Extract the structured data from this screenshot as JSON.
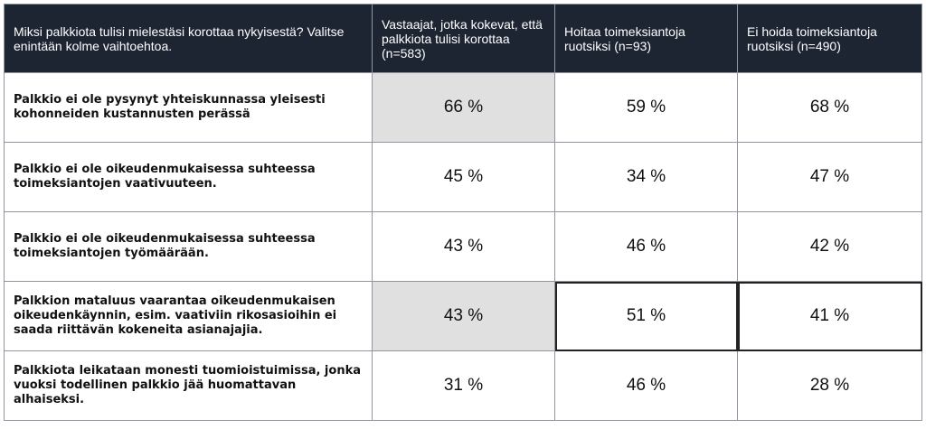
{
  "chart_data": {
    "type": "table",
    "columns": [
      "Miksi palkkiota tulisi mielestäsi korottaa nykyisestä? Valitse enintään kolme vaihtoehtoa.",
      "Vastaajat, jotka kokevat, että palkkiota tulisi korottaa (n=583)",
      "Hoitaa toimeksiantoja ruotsiksi (n=93)",
      "Ei hoida toimeksiantoja ruotsiksi (n=490)"
    ],
    "rows": [
      {
        "label": "Palkkio ei ole pysynyt yhteiskunnassa yleisesti kohonneiden kustannusten perässä",
        "values": [
          "66 %",
          "59 %",
          "68 %"
        ]
      },
      {
        "label": "Palkkio ei ole oikeudenmukaisessa suhteessa toimeksiantojen vaativuuteen.",
        "values": [
          "45 %",
          "34 %",
          "47 %"
        ]
      },
      {
        "label": "Palkkio ei ole oikeudenmukaisessa suhteessa toimeksiantojen työmäärään.",
        "values": [
          "43 %",
          "46 %",
          "42 %"
        ]
      },
      {
        "label": "Palkkion mataluus vaarantaa oikeudenmukaisen oikeudenkäynnin, esim. vaativiin rikosasioihin ei saada riittävän kokeneita asianajajia.",
        "values": [
          "43 %",
          "51 %",
          "41 %"
        ]
      },
      {
        "label": "Palkkiota leikataan monesti tuomioistuimissa, jonka vuoksi todellinen palkkio jää huomattavan alhaiseksi.",
        "values": [
          "31 %",
          "46 %",
          "28 %"
        ]
      }
    ],
    "header_color": "#1d2533",
    "highlight_color": "#e0e0e0"
  }
}
